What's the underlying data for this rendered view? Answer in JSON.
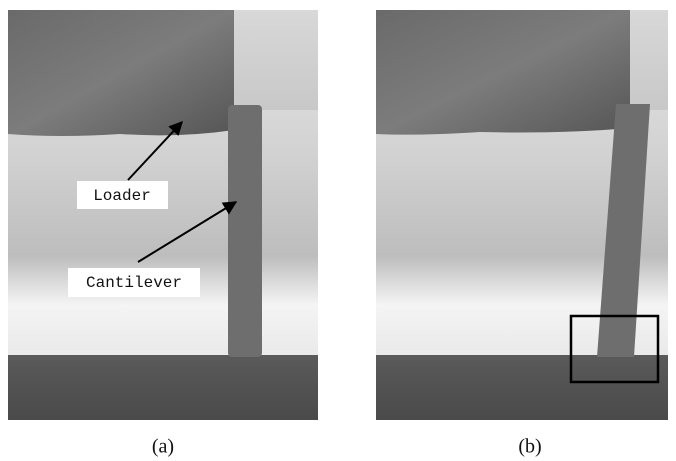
{
  "annotations": {
    "loader": "Loader",
    "cantilever": "Cantilever"
  },
  "captions": [
    "(a)",
    "(b)"
  ]
}
